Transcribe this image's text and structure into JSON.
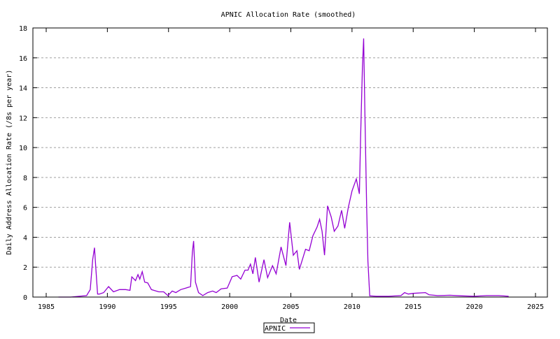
{
  "chart_data": {
    "type": "line",
    "title": "APNIC Allocation Rate (smoothed)",
    "xlabel": "Date",
    "ylabel": "Daily Address Allocation Rate (/8s per year)",
    "xlim": [
      1983.9,
      2026
    ],
    "ylim": [
      0,
      18
    ],
    "xticks": [
      1985,
      1990,
      1995,
      2000,
      2005,
      2010,
      2015,
      2020,
      2025
    ],
    "yticks": [
      0,
      2,
      4,
      6,
      8,
      10,
      12,
      14,
      16,
      18
    ],
    "grid": "horizontal dashed",
    "legend_position": "bottom-center",
    "colors": {
      "series": "#9400d3",
      "grid": "#a0a0a0"
    },
    "series": [
      {
        "name": "APNIC",
        "x": [
          1986.0,
          1987.0,
          1987.7,
          1988.3,
          1988.6,
          1988.8,
          1988.95,
          1989.05,
          1989.2,
          1989.35,
          1989.7,
          1990.1,
          1990.5,
          1991.0,
          1991.5,
          1991.85,
          1992.0,
          1992.3,
          1992.5,
          1992.65,
          1992.85,
          1993.05,
          1993.3,
          1993.6,
          1993.8,
          1994.2,
          1994.6,
          1994.95,
          1995.3,
          1995.6,
          1996.0,
          1996.4,
          1996.8,
          1996.95,
          1997.05,
          1997.2,
          1997.45,
          1997.8,
          1998.2,
          1998.6,
          1998.9,
          1999.3,
          1999.8,
          2000.1,
          2000.2,
          2000.6,
          2000.9,
          2001.25,
          2001.5,
          2001.7,
          2001.9,
          2002.1,
          2002.4,
          2002.8,
          2003.1,
          2003.5,
          2003.8,
          2004.2,
          2004.6,
          2004.9,
          2005.2,
          2005.5,
          2005.7,
          2006.2,
          2006.5,
          2006.8,
          2007.15,
          2007.35,
          2007.55,
          2007.75,
          2008.0,
          2008.3,
          2008.55,
          2008.85,
          2009.15,
          2009.4,
          2009.7,
          2010.0,
          2010.35,
          2010.6,
          2010.7,
          2010.85,
          2010.95,
          2011.05,
          2011.2,
          2011.3,
          2011.45,
          2012.0,
          2013.0,
          2014.0,
          2014.3,
          2014.6,
          2015.0,
          2016.0,
          2016.3,
          2017.0,
          2018.0,
          2019.0,
          2020.0,
          2021.0,
          2022.0,
          2022.8
        ],
        "y": [
          0.0,
          0.0,
          0.05,
          0.1,
          0.5,
          2.5,
          3.3,
          2.0,
          0.2,
          0.2,
          0.3,
          0.7,
          0.35,
          0.5,
          0.5,
          0.45,
          1.35,
          1.1,
          1.5,
          1.2,
          1.7,
          1.0,
          0.95,
          0.5,
          0.45,
          0.35,
          0.35,
          0.1,
          0.4,
          0.3,
          0.5,
          0.6,
          0.7,
          3.0,
          3.75,
          1.0,
          0.3,
          0.1,
          0.3,
          0.4,
          0.3,
          0.55,
          0.6,
          1.17,
          1.36,
          1.45,
          1.2,
          1.8,
          1.8,
          2.2,
          1.55,
          2.65,
          1.0,
          2.5,
          1.3,
          2.1,
          1.55,
          3.35,
          2.1,
          5.0,
          2.8,
          3.1,
          1.85,
          3.2,
          3.1,
          4.1,
          4.7,
          5.2,
          4.4,
          2.8,
          6.1,
          5.35,
          4.4,
          4.75,
          5.8,
          4.6,
          6.0,
          7.1,
          7.9,
          6.9,
          10.6,
          15.3,
          17.3,
          12.5,
          6.0,
          2.4,
          0.08,
          0.05,
          0.05,
          0.1,
          0.3,
          0.2,
          0.25,
          0.3,
          0.15,
          0.1,
          0.12,
          0.08,
          0.05,
          0.1,
          0.1,
          0.05
        ]
      }
    ]
  }
}
